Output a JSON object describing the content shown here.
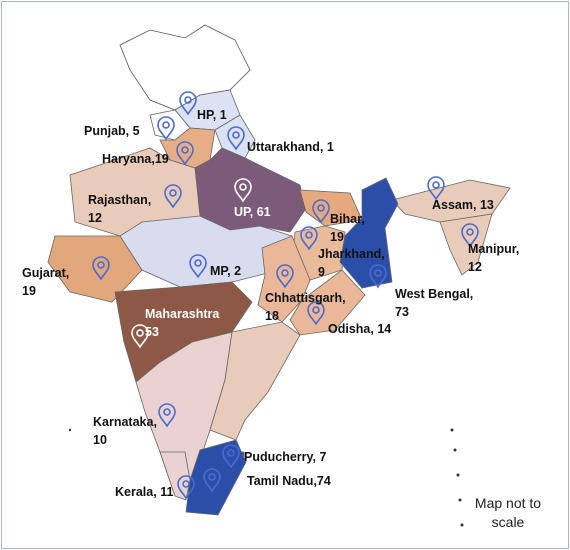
{
  "regions": [
    {
      "name": "HP,",
      "value": 1,
      "color": "#dbe2f3"
    },
    {
      "name": "Punjab,",
      "value": 5,
      "color": "#ffffff"
    },
    {
      "name": "Uttarakhand,",
      "value": 1,
      "color": "#dbe2f3"
    },
    {
      "name": "Haryana,",
      "value": 19,
      "color": "#e6ae86"
    },
    {
      "name": "UP,",
      "value": 61,
      "color": "#7b5b79"
    },
    {
      "name": "Rajasthan,",
      "value": 12,
      "color": "#e8cbb8"
    },
    {
      "name": "Bihar,",
      "value": 19,
      "color": "#e6a87d"
    },
    {
      "name": "Jharkhand,",
      "value": 9,
      "color": "#eabb9b"
    },
    {
      "name": "Assam,",
      "value": 13,
      "color": "#e8cbb8"
    },
    {
      "name": "Manipur,",
      "value": 12,
      "color": "#e8cbb8"
    },
    {
      "name": "Gujarat,",
      "value": 19,
      "color": "#e2a87c"
    },
    {
      "name": "MP,",
      "value": 2,
      "color": "#d9dcef"
    },
    {
      "name": "Chhattisgarh,",
      "value": 18,
      "color": "#eab898"
    },
    {
      "name": "West Bengal,",
      "value": 73,
      "color": "#2b4fa9"
    },
    {
      "name": "Maharashtra",
      "value": 53,
      "color": "#8d5846"
    },
    {
      "name": "Odisha,",
      "value": 14,
      "color": "#eab898"
    },
    {
      "name": "Karnataka,",
      "value": 10,
      "color": "#ead2d1"
    },
    {
      "name": "Puducherry,",
      "value": 7,
      "color": "#2b4fa9"
    },
    {
      "name": "Tamil Nadu,",
      "value": 74,
      "color": "#2b4fa9"
    },
    {
      "name": "Kerala,",
      "value": 11,
      "color": "#ead2d1"
    }
  ],
  "note": "Map not to scale"
}
